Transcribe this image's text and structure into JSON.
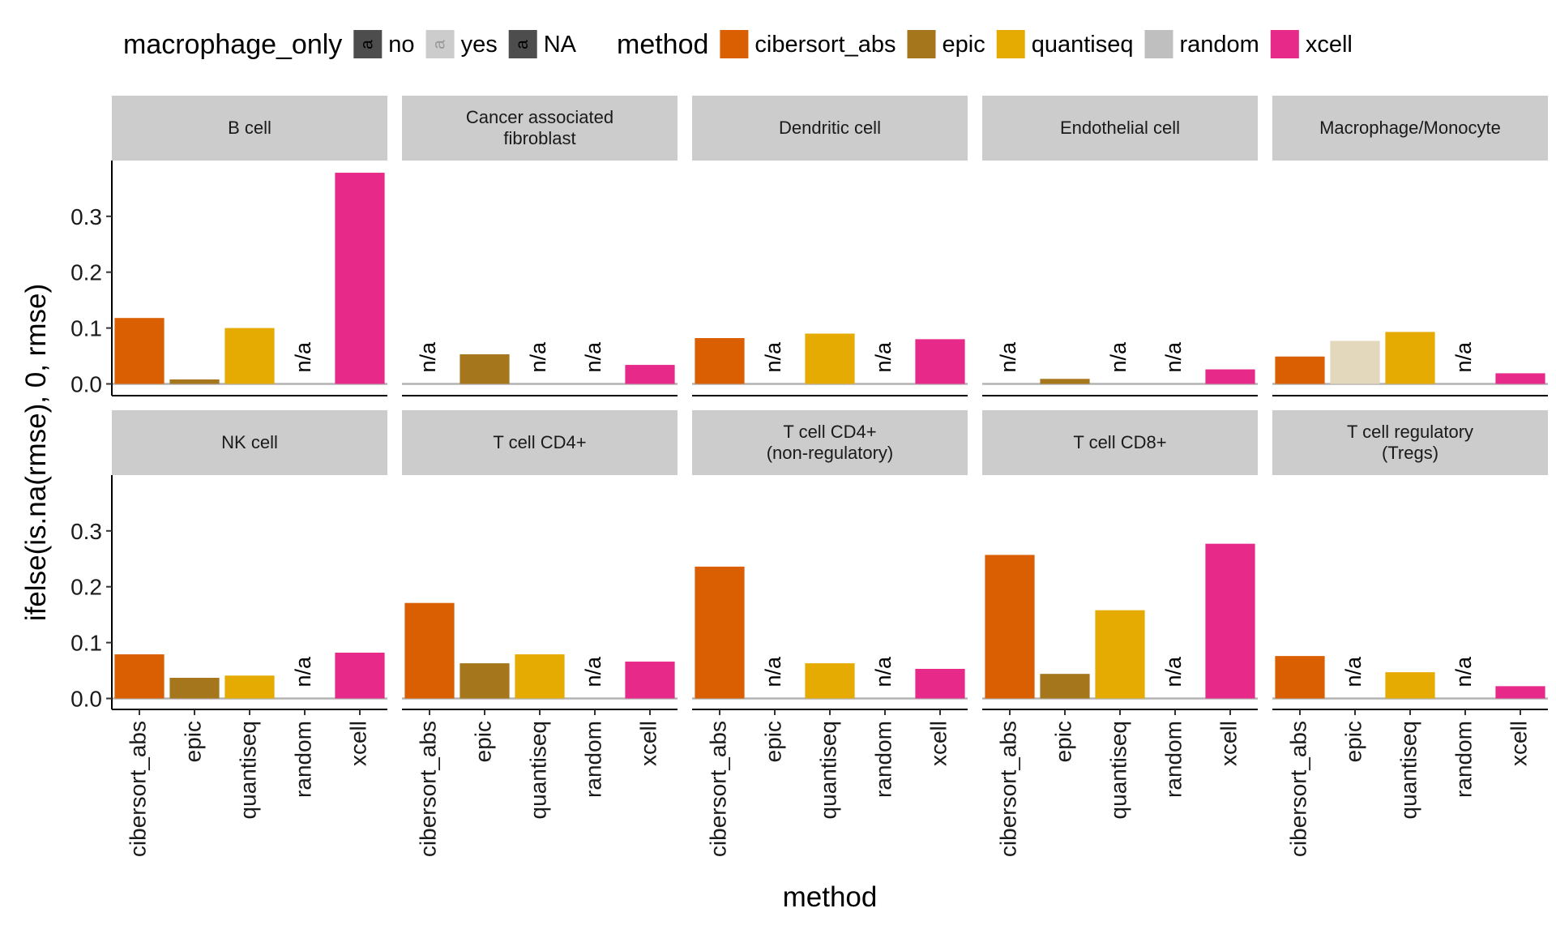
{
  "chart_data": {
    "type": "bar",
    "xlabel": "method",
    "ylabel": "ifelse(is.na(rmse), 0, rmse)",
    "ylim": [
      0,
      0.4
    ],
    "yticks": [
      0.0,
      0.1,
      0.2,
      0.3
    ],
    "ytick_labels": [
      "0.0",
      "0.1",
      "0.2",
      "0.3"
    ],
    "categories": [
      "cibersort_abs",
      "epic",
      "quantiseq",
      "random",
      "xcell"
    ],
    "na_label": "n/a",
    "facet_layout": "2 rows x 5 columns",
    "legend_position": "top",
    "grid": false,
    "legends": [
      {
        "title": "macrophage_only",
        "glyph": "a",
        "items": [
          {
            "label": "no",
            "fill": "#4d4d4d",
            "text_color": "#000000"
          },
          {
            "label": "yes",
            "fill": "#cccccc",
            "text_color": "#999999"
          },
          {
            "label": "NA",
            "fill": "#4d4d4d",
            "text_color": "#000000"
          }
        ]
      },
      {
        "title": "method",
        "items": [
          {
            "label": "cibersort_abs",
            "fill": "#d95f02"
          },
          {
            "label": "epic",
            "fill": "#a6761d"
          },
          {
            "label": "quantiseq",
            "fill": "#e6ab02"
          },
          {
            "label": "random",
            "fill": "#bfbfbf"
          },
          {
            "label": "xcell",
            "fill": "#e7298a"
          }
        ]
      }
    ],
    "method_colors": {
      "cibersort_abs": "#d95f02",
      "epic": "#a6761d",
      "quantiseq": "#e6ab02",
      "random": "#bfbfbf",
      "xcell": "#e7298a"
    },
    "macrophage_yes_color": "#e3d7bc",
    "facets": [
      {
        "title": [
          "B cell"
        ],
        "values": [
          0.118,
          0.008,
          0.1,
          null,
          0.378
        ],
        "macrophage_only": [
          "no",
          "no",
          "no",
          "no",
          "no"
        ]
      },
      {
        "title": [
          "Cancer associated",
          "fibroblast"
        ],
        "values": [
          null,
          0.053,
          null,
          null,
          0.034
        ],
        "macrophage_only": [
          "no",
          "no",
          "no",
          "no",
          "no"
        ]
      },
      {
        "title": [
          "Dendritic cell"
        ],
        "values": [
          0.082,
          null,
          0.09,
          null,
          0.08
        ],
        "macrophage_only": [
          "no",
          "no",
          "no",
          "no",
          "no"
        ]
      },
      {
        "title": [
          "Endothelial cell"
        ],
        "values": [
          null,
          0.009,
          null,
          null,
          0.026
        ],
        "macrophage_only": [
          "no",
          "no",
          "no",
          "no",
          "no"
        ]
      },
      {
        "title": [
          "Macrophage/Monocyte"
        ],
        "values": [
          0.049,
          0.077,
          0.093,
          null,
          0.019
        ],
        "macrophage_only": [
          "no",
          "yes",
          "no",
          "no",
          "no"
        ]
      },
      {
        "title": [
          "NK cell"
        ],
        "values": [
          0.079,
          0.037,
          0.041,
          null,
          0.082
        ],
        "macrophage_only": [
          "no",
          "no",
          "no",
          "no",
          "no"
        ]
      },
      {
        "title": [
          "T cell CD4+"
        ],
        "values": [
          0.171,
          0.063,
          0.079,
          null,
          0.066
        ],
        "macrophage_only": [
          "no",
          "no",
          "no",
          "no",
          "no"
        ]
      },
      {
        "title": [
          "T cell CD4+",
          "(non-regulatory)"
        ],
        "values": [
          0.236,
          null,
          0.063,
          null,
          0.053
        ],
        "macrophage_only": [
          "no",
          "no",
          "no",
          "no",
          "no"
        ]
      },
      {
        "title": [
          "T cell CD8+"
        ],
        "values": [
          0.257,
          0.044,
          0.158,
          null,
          0.277
        ],
        "macrophage_only": [
          "no",
          "no",
          "no",
          "no",
          "no"
        ]
      },
      {
        "title": [
          "T cell regulatory",
          "(Tregs)"
        ],
        "values": [
          0.076,
          null,
          0.047,
          null,
          0.022
        ],
        "macrophage_only": [
          "no",
          "no",
          "no",
          "no",
          "no"
        ]
      }
    ]
  }
}
